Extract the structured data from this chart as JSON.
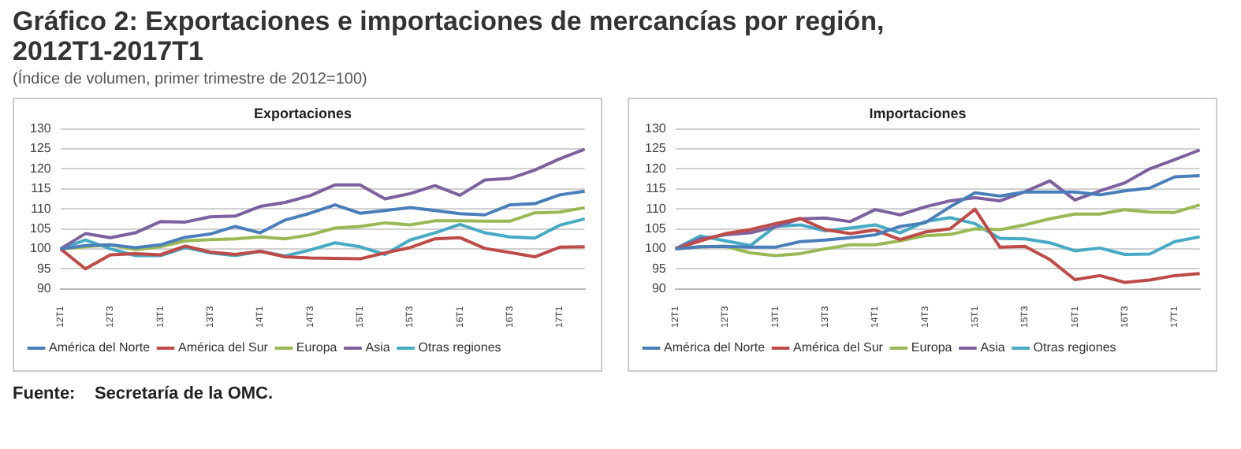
{
  "chart_data": [
    {
      "type": "line",
      "title": "Exportaciones",
      "annotations": [
        "Gráfico 2: Exportaciones e importaciones de mercancías por región, 2012T1-2017T1",
        "(Índice de volumen, primer trimestre de 2012=100)",
        "Fuente:    Secretaría de la OMC."
      ],
      "categories": [
        "12T1",
        null,
        "12T3",
        null,
        "13T1",
        null,
        "13T3",
        null,
        "14T1",
        null,
        "14T3",
        null,
        "15T1",
        null,
        "15T3",
        null,
        "16T1",
        null,
        "16T3",
        null,
        "17T1",
        null
      ],
      "series": [
        {
          "name": "América del Norte",
          "color": "#4a7ebb",
          "values": [
            100,
            100.8,
            101,
            100.3,
            101,
            102.9,
            103.7,
            105.6,
            104,
            107.2,
            108.9,
            111,
            108.9,
            109.6,
            110.3,
            109.6,
            108.8,
            108.5,
            111,
            111.3,
            113.5,
            114.4
          ]
        },
        {
          "name": "América del Sur",
          "color": "#be4b48",
          "values": [
            100,
            95,
            98.5,
            98.8,
            98.5,
            100.7,
            99.2,
            98.6,
            99.4,
            98,
            97.7,
            97.6,
            97.5,
            99,
            100.3,
            102.5,
            102.8,
            100.1,
            99.1,
            98,
            100.4,
            100.5
          ]
        },
        {
          "name": "Europa",
          "color": "#98b954",
          "values": [
            100,
            100.5,
            101,
            99.8,
            100.5,
            102,
            102.3,
            102.5,
            103,
            102.5,
            103.5,
            105.2,
            105.6,
            106.5,
            106,
            107,
            107,
            106.9,
            106.9,
            109,
            109.2,
            110.3
          ]
        },
        {
          "name": "Asia",
          "color": "#7d60a0",
          "values": [
            100,
            103.8,
            102.8,
            104,
            106.8,
            106.7,
            108,
            108.2,
            110.6,
            111.6,
            113.3,
            116,
            116,
            112.5,
            113.8,
            115.8,
            113.4,
            117.2,
            117.6,
            119.7,
            122.5,
            124.9
          ]
        },
        {
          "name": "Otras regiones",
          "color": "#46aac5",
          "values": [
            100,
            102.2,
            100,
            98.3,
            98.3,
            100.3,
            99,
            98.3,
            99.4,
            98.2,
            99.7,
            101.5,
            100.5,
            98.6,
            102.2,
            104,
            106.1,
            104,
            103,
            102.7,
            105.9,
            107.5
          ]
        }
      ],
      "ylim": [
        90,
        130
      ],
      "yticks": [
        90,
        95,
        100,
        105,
        110,
        115,
        120,
        125,
        130
      ],
      "grid": "y",
      "legend": "bottom",
      "marker": "none",
      "line_style": "solid"
    },
    {
      "type": "line",
      "title": "Importaciones",
      "categories": [
        "12T1",
        null,
        "12T3",
        null,
        "13T1",
        null,
        "13T3",
        null,
        "14T1",
        null,
        "14T3",
        null,
        "15T1",
        null,
        "15T3",
        null,
        "16T1",
        null,
        "16T3",
        null,
        "17T1",
        null
      ],
      "series": [
        {
          "name": "América del Norte",
          "color": "#4a7ebb",
          "values": [
            100,
            100.5,
            100.6,
            100.4,
            100.4,
            101.8,
            102.2,
            102.8,
            103.5,
            105.6,
            106.5,
            110.5,
            114,
            113.2,
            114.2,
            114.2,
            114.2,
            113.5,
            114.5,
            115.2,
            118,
            118.3
          ]
        },
        {
          "name": "América del Sur",
          "color": "#be4b48",
          "values": [
            100,
            102,
            103.8,
            104.8,
            106.3,
            107.6,
            104.8,
            103.8,
            104.7,
            102.3,
            104.2,
            105,
            109.9,
            100.4,
            100.6,
            97.3,
            92.3,
            93.3,
            91.6,
            92.2,
            93.3,
            93.8
          ]
        },
        {
          "name": "Europa",
          "color": "#98b954",
          "values": [
            100,
            100.5,
            100.6,
            99,
            98.3,
            98.8,
            100,
            101,
            101,
            102,
            103.3,
            103.6,
            105,
            104.8,
            106,
            107.5,
            108.7,
            108.7,
            109.8,
            109.2,
            109.1,
            111
          ]
        },
        {
          "name": "Asia",
          "color": "#7d60a0",
          "values": [
            100,
            102.5,
            103.5,
            104,
            105.5,
            107.5,
            107.7,
            106.8,
            109.8,
            108.5,
            110.5,
            112,
            112.8,
            112,
            114.3,
            117,
            112.2,
            114.5,
            116.5,
            120,
            122.3,
            124.7
          ]
        },
        {
          "name": "Otras regiones",
          "color": "#46aac5",
          "values": [
            100,
            103.2,
            102,
            100.8,
            105.6,
            106,
            104.5,
            105.2,
            106,
            104,
            106.8,
            107.8,
            106.3,
            102.6,
            102.5,
            101.5,
            99.5,
            100.2,
            98.6,
            98.7,
            101.8,
            103
          ]
        }
      ],
      "ylim": [
        90,
        130
      ],
      "yticks": [
        90,
        95,
        100,
        105,
        110,
        115,
        120,
        125,
        130
      ],
      "grid": "y",
      "legend": "bottom",
      "marker": "none",
      "line_style": "solid"
    }
  ]
}
